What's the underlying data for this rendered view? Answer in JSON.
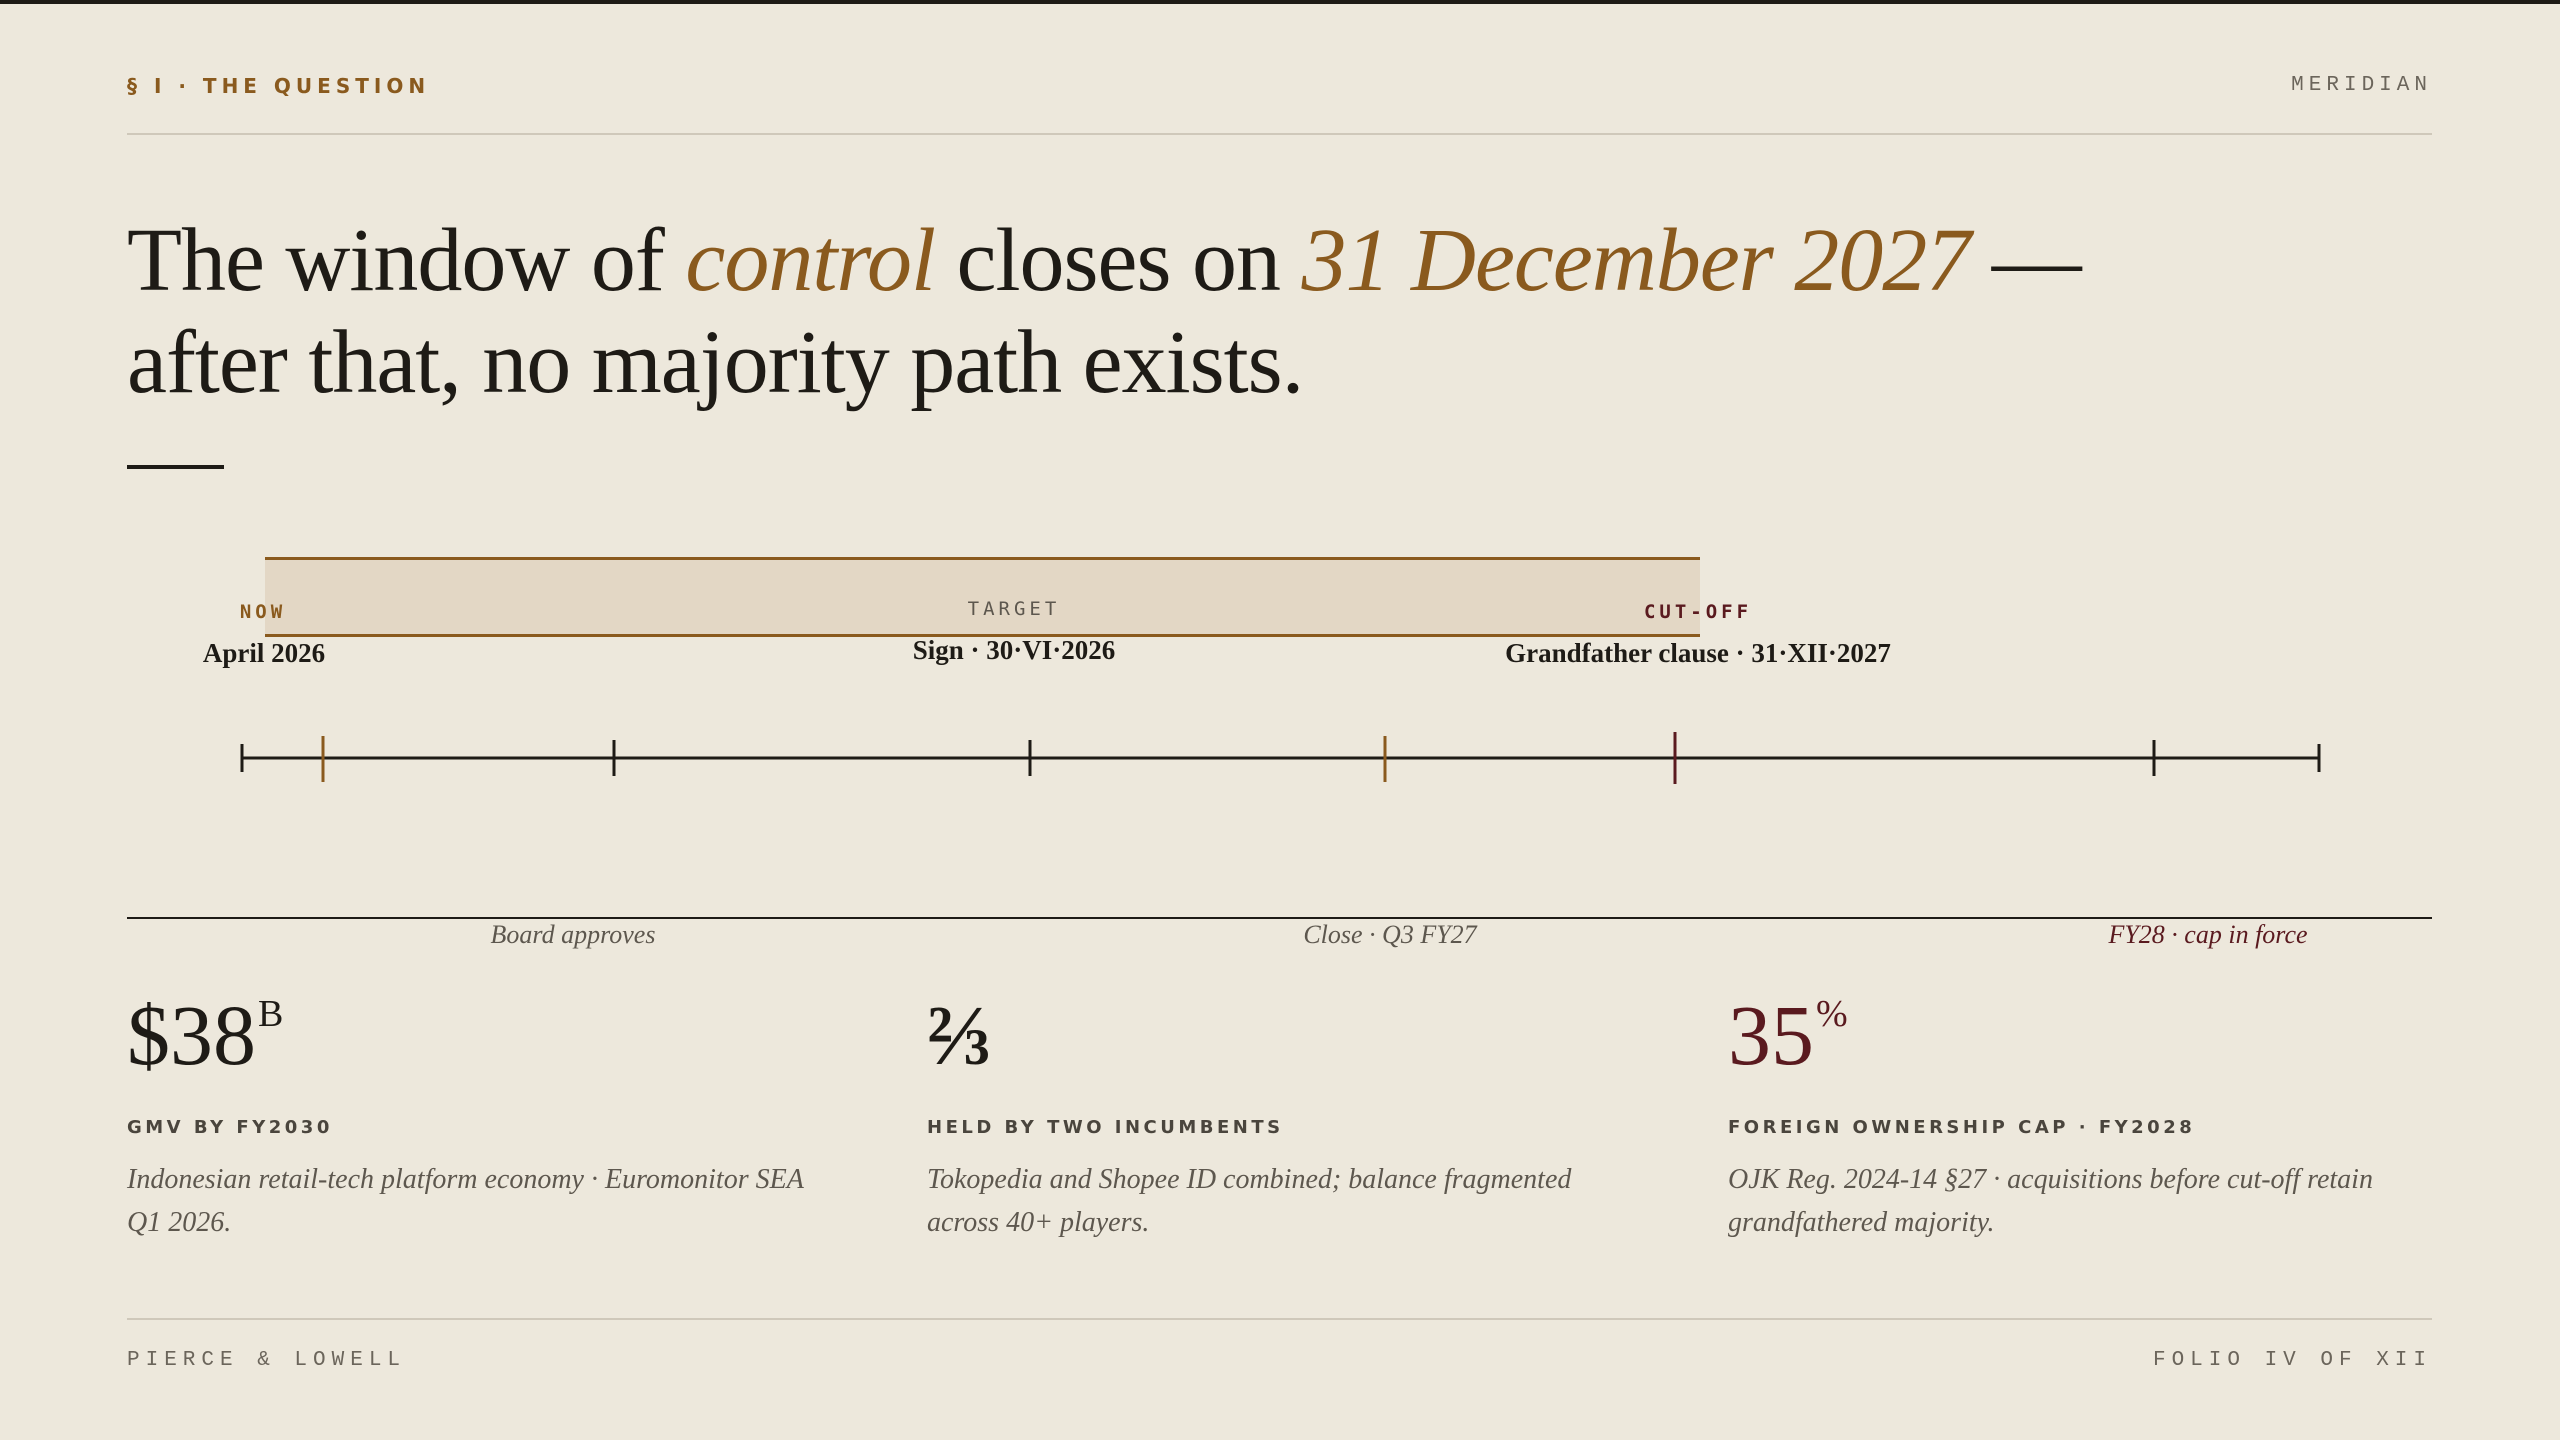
{
  "header": {
    "section": "§ I · THE QUESTION",
    "brand": "MERIDIAN"
  },
  "headline": {
    "line1": [
      "The window of",
      "control",
      "closes on",
      "31 December 2027",
      "—"
    ],
    "line2": "after that, no majority path exists."
  },
  "timeline": {
    "markers": [
      {
        "kicker": "NOW",
        "label": "April 2026"
      },
      {
        "kicker": "TARGET",
        "label": "Sign · 30·VI·2026"
      },
      {
        "kicker": "CUT-OFF",
        "label": "Grandfather clause · 31·XII·2027"
      }
    ],
    "captions": [
      "Board approves",
      "Close · Q3 FY27",
      "FY28 · cap in force"
    ]
  },
  "stats": [
    {
      "value": "$38",
      "unit": "B",
      "label": "GMV BY FY2030",
      "note": "Indonesian retail-tech platform economy · Euromonitor SEA Q1 2026."
    },
    {
      "value": "⅔",
      "label": "HELD BY TWO INCUMBENTS",
      "note": "Tokopedia and Shopee ID combined; balance fragmented across 40+ players."
    },
    {
      "value": "35",
      "unit": "%",
      "label": "FOREIGN OWNERSHIP CAP · FY2028",
      "note": "OJK Reg. 2024-14 §27 · acquisitions before cut-off retain grandfathered majority."
    }
  ],
  "footer": {
    "left": "PIERCE & LOWELL",
    "right": "FOLIO IV OF XII"
  }
}
